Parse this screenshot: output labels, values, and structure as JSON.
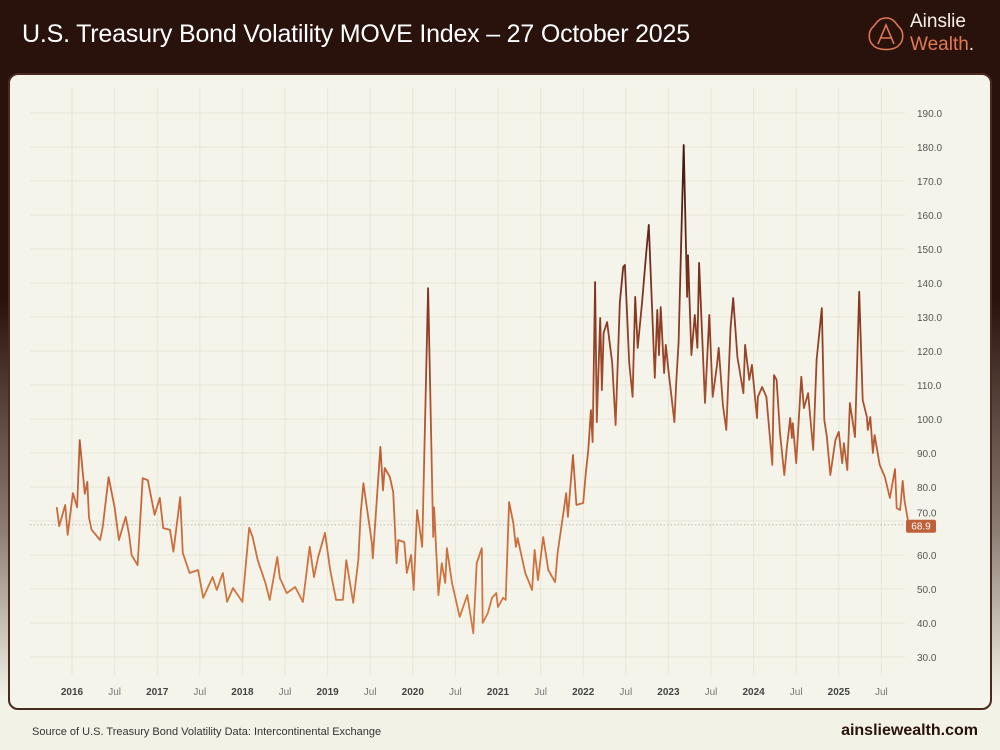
{
  "header": {
    "title": "U.S. Treasury Bond Volatility MOVE Index – 27 October 2025"
  },
  "logo": {
    "line1": "Ainslie",
    "line2": "Wealth",
    "dot": "."
  },
  "footer": {
    "source": "Source of U.S. Treasury Bond Volatility Data: Intercontinental Exchange",
    "site": "ainsliewealth.com"
  },
  "colors": {
    "header_bg": "#2a120c",
    "panel_bg": "#f4f4ea",
    "line_low": "#d0783f",
    "line_high": "#3d1510",
    "badge": "#c0603a"
  },
  "chart_data": {
    "type": "line",
    "title": "U.S. Treasury Bond Volatility MOVE Index – 27 October 2025",
    "xlabel": "",
    "ylabel": "",
    "ylim": [
      25,
      195
    ],
    "xlim": [
      2015.8,
      2025.95
    ],
    "grid": true,
    "y_axis_position": "right",
    "y_ticks": [
      "30.0",
      "40.0",
      "50.0",
      "60.0",
      "70.0",
      "80.0",
      "90.0",
      "100.0",
      "110.0",
      "120.0",
      "130.0",
      "140.0",
      "150.0",
      "160.0",
      "170.0",
      "180.0",
      "190.0"
    ],
    "x_ticks": [
      {
        "label": "2016",
        "x": 2016.0,
        "major": true
      },
      {
        "label": "Jul",
        "x": 2016.5,
        "major": false
      },
      {
        "label": "2017",
        "x": 2017.0,
        "major": true
      },
      {
        "label": "Jul",
        "x": 2017.5,
        "major": false
      },
      {
        "label": "2018",
        "x": 2018.0,
        "major": true
      },
      {
        "label": "Jul",
        "x": 2018.5,
        "major": false
      },
      {
        "label": "2019",
        "x": 2019.0,
        "major": true
      },
      {
        "label": "Jul",
        "x": 2019.5,
        "major": false
      },
      {
        "label": "2020",
        "x": 2020.0,
        "major": true
      },
      {
        "label": "Jul",
        "x": 2020.5,
        "major": false
      },
      {
        "label": "2021",
        "x": 2021.0,
        "major": true
      },
      {
        "label": "Jul",
        "x": 2021.5,
        "major": false
      },
      {
        "label": "2022",
        "x": 2022.0,
        "major": true
      },
      {
        "label": "Jul",
        "x": 2022.5,
        "major": false
      },
      {
        "label": "2023",
        "x": 2023.0,
        "major": true
      },
      {
        "label": "Jul",
        "x": 2023.5,
        "major": false
      },
      {
        "label": "2024",
        "x": 2024.0,
        "major": true
      },
      {
        "label": "Jul",
        "x": 2024.5,
        "major": false
      },
      {
        "label": "2025",
        "x": 2025.0,
        "major": true
      },
      {
        "label": "Jul",
        "x": 2025.5,
        "major": false
      }
    ],
    "last_value": 68.9,
    "last_value_label": "68.9",
    "x": [
      2015.82,
      2015.85,
      2015.92,
      2015.95,
      2016.01,
      2016.06,
      2016.09,
      2016.15,
      2016.18,
      2016.2,
      2016.23,
      2016.33,
      2016.36,
      2016.43,
      2016.5,
      2016.55,
      2016.63,
      2016.67,
      2016.7,
      2016.77,
      2016.83,
      2016.89,
      2016.94,
      2016.97,
      2017.03,
      2017.07,
      2017.15,
      2017.19,
      2017.27,
      2017.3,
      2017.38,
      2017.48,
      2017.54,
      2017.65,
      2017.7,
      2017.77,
      2017.82,
      2017.89,
      2018.0,
      2018.08,
      2018.12,
      2018.18,
      2018.27,
      2018.32,
      2018.41,
      2018.44,
      2018.52,
      2018.62,
      2018.71,
      2018.79,
      2018.84,
      2018.89,
      2018.97,
      2019.03,
      2019.1,
      2019.18,
      2019.22,
      2019.3,
      2019.36,
      2019.39,
      2019.42,
      2019.52,
      2019.53,
      2019.62,
      2019.65,
      2019.67,
      2019.73,
      2019.77,
      2019.81,
      2019.83,
      2019.9,
      2019.93,
      2019.98,
      2020.01,
      2020.05,
      2020.11,
      2020.18,
      2020.2,
      2020.24,
      2020.25,
      2020.3,
      2020.34,
      2020.38,
      2020.4,
      2020.46,
      2020.55,
      2020.64,
      2020.71,
      2020.75,
      2020.81,
      2020.82,
      2020.88,
      2020.93,
      2020.98,
      2021.0,
      2021.06,
      2021.09,
      2021.13,
      2021.18,
      2021.21,
      2021.23,
      2021.32,
      2021.4,
      2021.43,
      2021.47,
      2021.53,
      2021.59,
      2021.67,
      2021.7,
      2021.76,
      2021.8,
      2021.82,
      2021.88,
      2021.92,
      2022.0,
      2022.03,
      2022.06,
      2022.09,
      2022.11,
      2022.14,
      2022.16,
      2022.2,
      2022.22,
      2022.24,
      2022.28,
      2022.34,
      2022.38,
      2022.43,
      2022.47,
      2022.49,
      2022.54,
      2022.58,
      2022.61,
      2022.64,
      2022.69,
      2022.74,
      2022.77,
      2022.84,
      2022.87,
      2022.89,
      2022.91,
      2022.95,
      2022.97,
      2023.0,
      2023.07,
      2023.09,
      2023.12,
      2023.18,
      2023.22,
      2023.23,
      2023.27,
      2023.31,
      2023.34,
      2023.36,
      2023.43,
      2023.48,
      2023.52,
      2023.57,
      2023.59,
      2023.64,
      2023.68,
      2023.73,
      2023.76,
      2023.81,
      2023.88,
      2023.9,
      2023.95,
      2023.98,
      2024.04,
      2024.05,
      2024.1,
      2024.15,
      2024.22,
      2024.24,
      2024.27,
      2024.31,
      2024.36,
      2024.39,
      2024.43,
      2024.45,
      2024.46,
      2024.5,
      2024.56,
      2024.59,
      2024.64,
      2024.7,
      2024.74,
      2024.8,
      2024.83,
      2024.86,
      2024.9,
      2024.96,
      2025.0,
      2025.04,
      2025.06,
      2025.1,
      2025.13,
      2025.19,
      2025.24,
      2025.28,
      2025.33,
      2025.34,
      2025.37,
      2025.4,
      2025.42,
      2025.48,
      2025.54,
      2025.6,
      2025.66,
      2025.68,
      2025.72,
      2025.75,
      2025.77,
      2025.82
    ],
    "y": [
      74.1,
      68.5,
      74.7,
      65.9,
      78.2,
      74.0,
      93.8,
      78.0,
      81.5,
      71.0,
      67.4,
      64.4,
      68.2,
      82.9,
      74.0,
      64.4,
      71.2,
      66.0,
      60.0,
      57.0,
      82.6,
      82.0,
      75.6,
      71.8,
      76.8,
      67.9,
      67.4,
      61.0,
      77.0,
      60.6,
      54.7,
      55.6,
      47.4,
      53.5,
      49.7,
      54.7,
      46.2,
      50.3,
      46.2,
      68.0,
      65.3,
      58.5,
      51.8,
      46.8,
      59.4,
      53.2,
      48.8,
      50.6,
      46.2,
      62.4,
      53.5,
      59.4,
      66.5,
      55.6,
      46.8,
      46.8,
      58.5,
      45.9,
      58.5,
      72.6,
      81.1,
      63.5,
      59.0,
      91.8,
      79.0,
      85.6,
      83.0,
      78.5,
      57.6,
      64.4,
      63.8,
      54.7,
      60.0,
      49.7,
      73.2,
      62.4,
      138.5,
      114.4,
      65.3,
      74.0,
      48.2,
      57.6,
      51.8,
      62.0,
      51.8,
      41.8,
      48.2,
      37.0,
      57.6,
      62.0,
      40.0,
      42.9,
      47.4,
      48.8,
      44.7,
      47.4,
      46.8,
      75.6,
      69.4,
      62.4,
      65.0,
      54.7,
      49.7,
      61.5,
      52.6,
      65.3,
      55.6,
      52.0,
      60.6,
      71.2,
      78.2,
      71.2,
      89.4,
      74.7,
      75.3,
      84.1,
      90.9,
      102.6,
      93.2,
      140.3,
      99.1,
      129.7,
      108.5,
      125.3,
      128.5,
      116.5,
      98.2,
      134.1,
      144.7,
      145.3,
      116.5,
      106.5,
      135.9,
      120.9,
      134.1,
      148.8,
      157.1,
      112.1,
      132.1,
      118.8,
      132.9,
      113.5,
      121.8,
      114.4,
      99.1,
      110.0,
      122.6,
      180.6,
      135.9,
      148.2,
      118.8,
      130.6,
      120.9,
      145.9,
      104.7,
      130.6,
      106.5,
      115.9,
      120.9,
      104.1,
      96.8,
      127.0,
      135.6,
      118.2,
      107.6,
      121.8,
      111.5,
      115.9,
      100.3,
      106.5,
      109.4,
      106.5,
      86.5,
      112.9,
      111.5,
      95.9,
      83.5,
      91.5,
      100.3,
      94.4,
      98.8,
      87.0,
      112.4,
      103.2,
      107.6,
      90.9,
      117.4,
      132.6,
      99.7,
      94.7,
      83.5,
      93.8,
      96.2,
      87.0,
      92.9,
      85.0,
      104.7,
      94.7,
      137.4,
      105.6,
      100.6,
      96.8,
      100.6,
      90.0,
      95.3,
      86.5,
      83.0,
      76.8,
      85.3,
      73.8,
      73.2,
      81.8,
      76.2,
      68.9
    ]
  }
}
